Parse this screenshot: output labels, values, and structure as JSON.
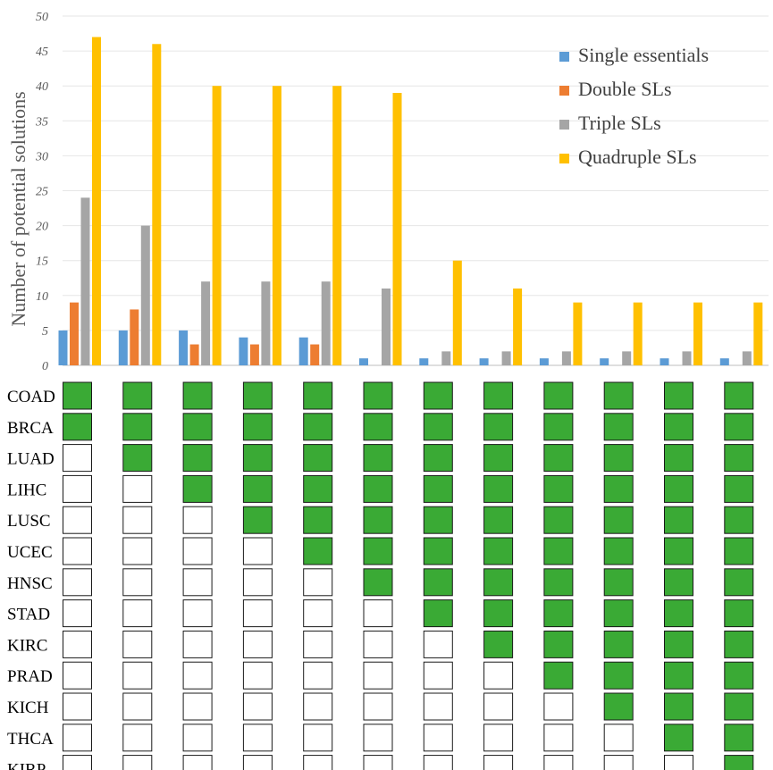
{
  "chart_data": {
    "type": "bar",
    "title": "",
    "ylabel": "Number of potential solutions",
    "xlabel": "",
    "ylim": [
      0,
      50
    ],
    "yticks": [
      0,
      5,
      10,
      15,
      20,
      25,
      30,
      35,
      40,
      45,
      50
    ],
    "grid": true,
    "legend_position": "top-right",
    "colors": {
      "single": "#5b9bd5",
      "double": "#ed7d31",
      "triple": "#a5a5a5",
      "quadruple": "#ffc000",
      "cell_filled": "#3aaa35",
      "cell_empty": "#ffffff"
    },
    "series": [
      {
        "name": "Single essentials",
        "color": "#5b9bd5",
        "values": [
          5,
          5,
          5,
          4,
          4,
          1,
          1,
          1,
          1,
          1,
          1,
          1
        ]
      },
      {
        "name": "Double SLs",
        "color": "#ed7d31",
        "values": [
          9,
          8,
          3,
          3,
          3,
          0,
          0,
          0,
          0,
          0,
          0,
          0
        ]
      },
      {
        "name": "Triple SLs",
        "color": "#a5a5a5",
        "values": [
          24,
          20,
          12,
          12,
          12,
          11,
          2,
          2,
          2,
          2,
          2,
          2
        ]
      },
      {
        "name": "Quadruple SLs",
        "color": "#ffc000",
        "values": [
          47,
          46,
          40,
          40,
          40,
          39,
          15,
          11,
          9,
          9,
          9,
          9
        ]
      }
    ],
    "matrix": {
      "rows": [
        "COAD",
        "BRCA",
        "LUAD",
        "LIHC",
        "LUSC",
        "UCEC",
        "HNSC",
        "STAD",
        "KIRC",
        "PRAD",
        "KICH",
        "THCA",
        "KIRP"
      ],
      "included_count_per_column": [
        2,
        3,
        4,
        5,
        6,
        7,
        8,
        9,
        10,
        11,
        12,
        13
      ]
    }
  }
}
